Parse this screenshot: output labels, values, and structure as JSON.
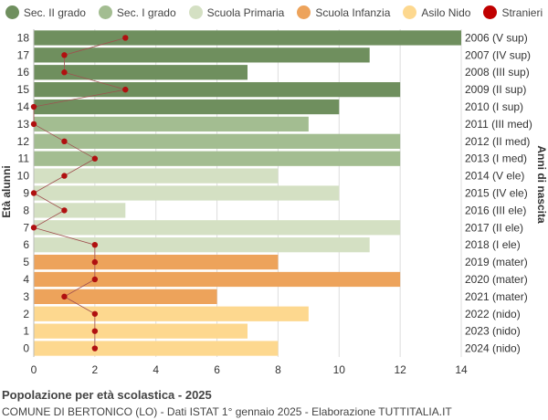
{
  "chart_data": {
    "type": "bar",
    "orientation": "horizontal",
    "title": "Popolazione per età scolastica - 2025",
    "subtitle": "COMUNE DI BERTONICO (LO) - Dati ISTAT 1° gennaio 2025 - Elaborazione TUTTITALIA.IT",
    "ylabel_left": "Età alunni",
    "ylabel_right": "Anni di nascita",
    "xlim": [
      0,
      14
    ],
    "xticks": [
      0,
      2,
      4,
      6,
      8,
      10,
      12,
      14
    ],
    "grid": true,
    "legend_position": "top",
    "legend": [
      {
        "label": "Sec. II grado",
        "color": "#6f8f5e"
      },
      {
        "label": "Sec. I grado",
        "color": "#a3bd91"
      },
      {
        "label": "Scuola Primaria",
        "color": "#d4e0c3"
      },
      {
        "label": "Scuola Infanzia",
        "color": "#eda35b"
      },
      {
        "label": "Asilo Nido",
        "color": "#fdd88f"
      },
      {
        "label": "Stranieri",
        "color": "#c00000"
      }
    ],
    "rows": [
      {
        "age": "18",
        "birth": "2006 (V sup)",
        "value": 14,
        "stranieri": 3,
        "group": 0
      },
      {
        "age": "17",
        "birth": "2007 (IV sup)",
        "value": 11,
        "stranieri": 1,
        "group": 0
      },
      {
        "age": "16",
        "birth": "2008 (III sup)",
        "value": 7,
        "stranieri": 1,
        "group": 0
      },
      {
        "age": "15",
        "birth": "2009 (II sup)",
        "value": 12,
        "stranieri": 3,
        "group": 0
      },
      {
        "age": "14",
        "birth": "2010 (I sup)",
        "value": 10,
        "stranieri": 0,
        "group": 0
      },
      {
        "age": "13",
        "birth": "2011 (III med)",
        "value": 9,
        "stranieri": 0,
        "group": 1
      },
      {
        "age": "12",
        "birth": "2012 (II med)",
        "value": 12,
        "stranieri": 1,
        "group": 1
      },
      {
        "age": "11",
        "birth": "2013 (I med)",
        "value": 12,
        "stranieri": 2,
        "group": 1
      },
      {
        "age": "10",
        "birth": "2014 (V ele)",
        "value": 8,
        "stranieri": 1,
        "group": 2
      },
      {
        "age": "9",
        "birth": "2015 (IV ele)",
        "value": 10,
        "stranieri": 0,
        "group": 2
      },
      {
        "age": "8",
        "birth": "2016 (III ele)",
        "value": 3,
        "stranieri": 1,
        "group": 2
      },
      {
        "age": "7",
        "birth": "2017 (II ele)",
        "value": 12,
        "stranieri": 0,
        "group": 2
      },
      {
        "age": "6",
        "birth": "2018 (I ele)",
        "value": 11,
        "stranieri": 2,
        "group": 2
      },
      {
        "age": "5",
        "birth": "2019 (mater)",
        "value": 8,
        "stranieri": 2,
        "group": 3
      },
      {
        "age": "4",
        "birth": "2020 (mater)",
        "value": 12,
        "stranieri": 2,
        "group": 3
      },
      {
        "age": "3",
        "birth": "2021 (mater)",
        "value": 6,
        "stranieri": 1,
        "group": 3
      },
      {
        "age": "2",
        "birth": "2022 (nido)",
        "value": 9,
        "stranieri": 2,
        "group": 4
      },
      {
        "age": "1",
        "birth": "2023 (nido)",
        "value": 7,
        "stranieri": 2,
        "group": 4
      },
      {
        "age": "0",
        "birth": "2024 (nido)",
        "value": 8,
        "stranieri": 2,
        "group": 4
      }
    ]
  }
}
